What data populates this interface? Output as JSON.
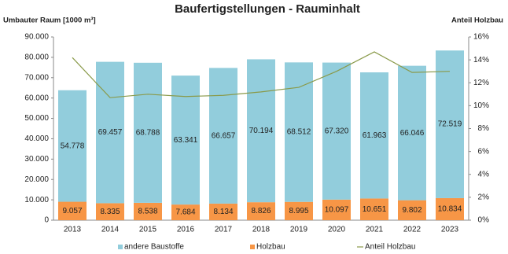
{
  "chart_data": {
    "type": "bar",
    "title": "Baufertigstellungen - Rauminhalt",
    "y_label": "Umbauter Raum [1000 m³]",
    "y2_label": "Anteil Holzbau",
    "stacked": true,
    "categories": [
      "2013",
      "2014",
      "2015",
      "2016",
      "2017",
      "2018",
      "2019",
      "2020",
      "2021",
      "2022",
      "2023"
    ],
    "series": [
      {
        "name": "andere Baustoffe",
        "color": "#92cddc",
        "values": [
          54778,
          69457,
          68788,
          63341,
          66657,
          70194,
          68512,
          67320,
          61963,
          66046,
          72519
        ],
        "value_labels": [
          "54.778",
          "69.457",
          "68.788",
          "63.341",
          "66.657",
          "70.194",
          "68.512",
          "67.320",
          "61.963",
          "66.046",
          "72.519"
        ]
      },
      {
        "name": "Holzbau",
        "color": "#f79646",
        "values": [
          9057,
          8335,
          8538,
          7684,
          8134,
          8826,
          8995,
          10097,
          10651,
          9802,
          10834
        ],
        "value_labels": [
          "9.057",
          "8.335",
          "8.538",
          "7.684",
          "8.134",
          "8.826",
          "8.995",
          "10.097",
          "10.651",
          "9.802",
          "10.834"
        ]
      },
      {
        "name": "Anteil Holzbau",
        "type": "line",
        "axis": "y2",
        "color": "#8a9a4a",
        "values": [
          14.2,
          10.7,
          11.0,
          10.8,
          10.9,
          11.2,
          11.6,
          13.0,
          14.7,
          12.9,
          13.0
        ]
      }
    ],
    "ylim": [
      0,
      90000
    ],
    "yticks": [
      0,
      {
        "value": 10000,
        "label": "10.000"
      },
      {
        "value": 20000,
        "label": "20.000"
      },
      {
        "value": 30000,
        "label": "30.000"
      },
      {
        "value": 40000,
        "label": "40.000"
      },
      {
        "value": 50000,
        "label": "50.000"
      },
      {
        "value": 60000,
        "label": "60.000"
      },
      {
        "value": 70000,
        "label": "70.000"
      },
      {
        "value": 80000,
        "label": "80.000"
      },
      {
        "value": 90000,
        "label": "90.000"
      }
    ],
    "y2lim": [
      0,
      16
    ],
    "y2ticks": [
      {
        "value": 0,
        "label": "0%"
      },
      {
        "value": 2,
        "label": "2%"
      },
      {
        "value": 4,
        "label": "4%"
      },
      {
        "value": 6,
        "label": "6%"
      },
      {
        "value": 8,
        "label": "8%"
      },
      {
        "value": 10,
        "label": "10%"
      },
      {
        "value": 12,
        "label": "12%"
      },
      {
        "value": 14,
        "label": "14%"
      },
      {
        "value": 16,
        "label": "16%"
      }
    ],
    "grid": false,
    "legend": "bottom"
  }
}
